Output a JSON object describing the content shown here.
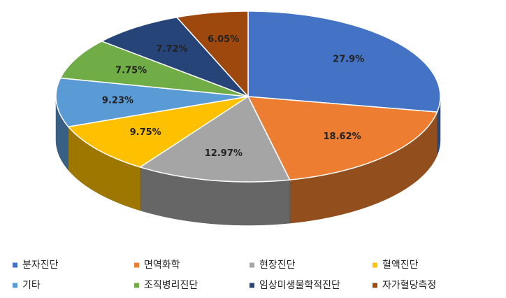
{
  "chart_data": {
    "type": "pie3d",
    "categories": [
      "분자진단",
      "면역화학",
      "현장진단",
      "혈액진단",
      "기타",
      "조직병리진단",
      "임상미생물학적진단",
      "자가혈당측정"
    ],
    "values": [
      27.9,
      18.62,
      12.97,
      9.75,
      9.23,
      7.75,
      7.72,
      6.05
    ],
    "value_labels": [
      "27.9%",
      "18.62%",
      "12.97%",
      "9.75%",
      "9.23%",
      "7.75%",
      "7.72%",
      "6.05%"
    ],
    "colors": [
      "#4472c4",
      "#ed7d31",
      "#a5a5a5",
      "#ffc000",
      "#5b9bd5",
      "#70ad47",
      "#264478",
      "#9e480e"
    ],
    "legend": "bottom"
  }
}
